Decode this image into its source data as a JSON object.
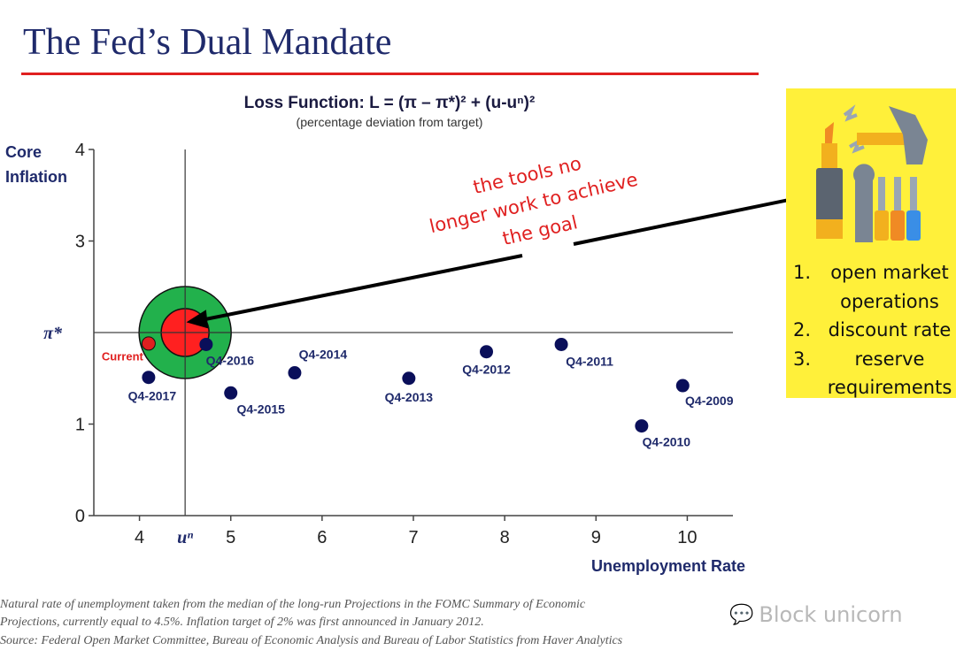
{
  "slide": {
    "title": "The Fed’s Dual Mandate",
    "accent_color": "#e02020",
    "title_color": "#1f2a6b"
  },
  "chart_data": {
    "type": "scatter",
    "title": "Loss Function: L = (π – π*)² + (u-uⁿ)²",
    "subtitle": "(percentage deviation  from target)",
    "xlabel": "Unemployment Rate",
    "ylabel": "Core Inflation",
    "xlim": [
      3.5,
      10.5
    ],
    "ylim": [
      0,
      4
    ],
    "x_ticks": [
      "4",
      "5",
      "6",
      "7",
      "8",
      "9",
      "10"
    ],
    "y_ticks": [
      "0",
      "1",
      "3",
      "4"
    ],
    "special_ticks": {
      "x_label": "uⁿ",
      "x_value": 4.5,
      "y_label": "π*",
      "y_value": 2
    },
    "target": {
      "u": 4.5,
      "pi": 2,
      "inner_color": "#ff2020",
      "outer_color": "#22b14c"
    },
    "point_color": "#0a0f5a",
    "current_color": "#e02020",
    "points": [
      {
        "label": "Q4-2009",
        "x": 9.95,
        "y": 1.42
      },
      {
        "label": "Q4-2010",
        "x": 9.5,
        "y": 0.98
      },
      {
        "label": "Q4-2011",
        "x": 8.62,
        "y": 1.87
      },
      {
        "label": "Q4-2012",
        "x": 7.8,
        "y": 1.79
      },
      {
        "label": "Q4-2013",
        "x": 6.95,
        "y": 1.5
      },
      {
        "label": "Q4-2014",
        "x": 5.7,
        "y": 1.56
      },
      {
        "label": "Q4-2015",
        "x": 5.0,
        "y": 1.34
      },
      {
        "label": "Q4-2016",
        "x": 4.73,
        "y": 1.87
      },
      {
        "label": "Q4-2017",
        "x": 4.1,
        "y": 1.51
      },
      {
        "label": "Current",
        "x": 4.1,
        "y": 1.88,
        "current": true
      }
    ],
    "annotation": "the tools no longer work to achieve the goal",
    "annotation_lines": [
      "the tools no",
      "longer work to achieve",
      "the goal"
    ]
  },
  "tools": {
    "icon": "tools-icon",
    "items": [
      {
        "num": "1.",
        "label": "open market operations"
      },
      {
        "num": "2.",
        "label": "discount rate"
      },
      {
        "num": "3.",
        "label": "reserve requirements"
      }
    ]
  },
  "footnotes": {
    "line1": "Natural rate of unemployment taken from the median of the long-run Projections  in the FOMC  Summary of Economic",
    "line2": "Projections,  currently equal to 4.5%.  Inflation target of 2% was first announced in January 2012.",
    "line3": "Source: Federal Open Market  Committee, Bureau of Economic Analysis and Bureau of Labor Statistics from Haver Analytics"
  },
  "watermark": {
    "text": "Block unicorn",
    "icon": "wechat-icon"
  }
}
